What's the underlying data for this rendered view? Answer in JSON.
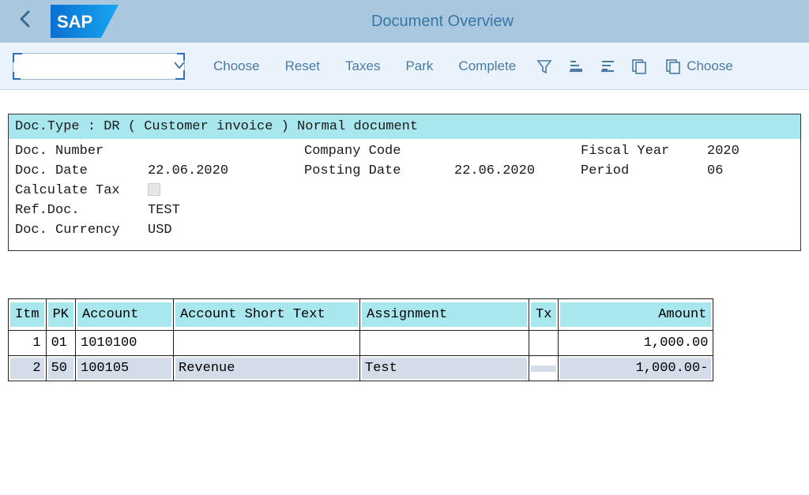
{
  "titlebar": {
    "title": "Document Overview",
    "logo_text": "SAP",
    "logo_bg_left": "#0a6fd1",
    "logo_bg_right": "#18a6ef"
  },
  "toolbar": {
    "choose": "Choose",
    "reset": "Reset",
    "taxes": "Taxes",
    "park": "Park",
    "complete": "Complete",
    "choose2": "Choose"
  },
  "doc": {
    "type_line": "Doc.Type : DR ( Customer invoice ) Normal document",
    "labels": {
      "doc_number": "Doc. Number",
      "company_code": "Company Code",
      "fiscal_year": "Fiscal Year",
      "doc_date": "Doc. Date",
      "posting_date": "Posting Date",
      "period": "Period",
      "calculate_tax": "Calculate Tax",
      "ref_doc": "Ref.Doc.",
      "doc_currency": "Doc. Currency"
    },
    "values": {
      "doc_number": "",
      "company_code": "",
      "fiscal_year": "2020",
      "doc_date": "22.06.2020",
      "posting_date": "22.06.2020",
      "period": "06",
      "ref_doc": "TEST",
      "doc_currency": "USD"
    }
  },
  "table": {
    "headers": {
      "itm": "Itm",
      "pk": "PK",
      "account": "Account",
      "short_text": "Account Short Text",
      "assignment": "Assignment",
      "tx": "Tx",
      "amount": "Amount"
    },
    "rows": [
      {
        "itm": "1",
        "pk": "01",
        "account": "1010100",
        "short_text": "",
        "assignment": "",
        "tx": "",
        "amount": "1,000.00"
      },
      {
        "itm": "2",
        "pk": "50",
        "account": "100105",
        "short_text": "Revenue",
        "assignment": "Test",
        "tx": "",
        "amount": "1,000.00-"
      }
    ]
  },
  "colors": {
    "titlebar_bg": "#a9c8df",
    "toolbar_bg": "#eaf3fb",
    "link_color": "#4b7aa3",
    "highlight_bg": "#a9e7ef",
    "row_alt_bg": "#d5dce9"
  }
}
